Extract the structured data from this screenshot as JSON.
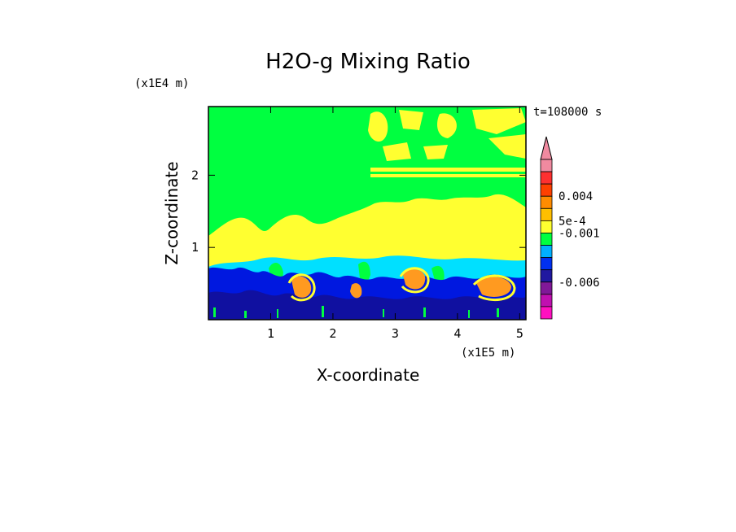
{
  "chart_data": {
    "type": "heatmap",
    "title": "H2O-g Mixing Ratio",
    "xlabel": "X-coordinate",
    "ylabel": "Z-coordinate",
    "x_scale_label": "(x1E5 m)",
    "y_scale_label": "(x1E4 m)",
    "time_label": "t=108000 s",
    "xlim": [
      0,
      5.1
    ],
    "ylim": [
      0,
      2.95
    ],
    "x_ticks": [
      "1",
      "2",
      "3",
      "4",
      "5"
    ],
    "y_ticks": [
      "1",
      "2"
    ],
    "colorbar": {
      "labels": [
        "0.004",
        "5e-4",
        "-0.001",
        "-0.006"
      ],
      "colors": [
        "#f08aa0",
        "#ff3030",
        "#ff4000",
        "#ff8c00",
        "#ffbf00",
        "#ffff30",
        "#00ff40",
        "#00b0ff",
        "#0030f0",
        "#2018a0",
        "#801898",
        "#c010b0",
        "#ff10c0"
      ],
      "extend": "max"
    },
    "regions": [
      {
        "level": "-0.001",
        "color": "#00ff40",
        "description": "upper atmosphere"
      },
      {
        "level": "5e-4",
        "color": "#ffff30",
        "description": "mid layer around z=1"
      },
      {
        "level": "-0.006",
        "color": "#0030f0",
        "description": "boundary layer"
      },
      {
        "level": "0.004",
        "color": "#ff8c00",
        "description": "convective plumes"
      }
    ]
  },
  "colors": {
    "green": "#00ff40",
    "yellow": "#ffff30",
    "cyan": "#00e0ff",
    "blue": "#0018e0",
    "navy": "#1010a0",
    "orange": "#ff9a20"
  }
}
